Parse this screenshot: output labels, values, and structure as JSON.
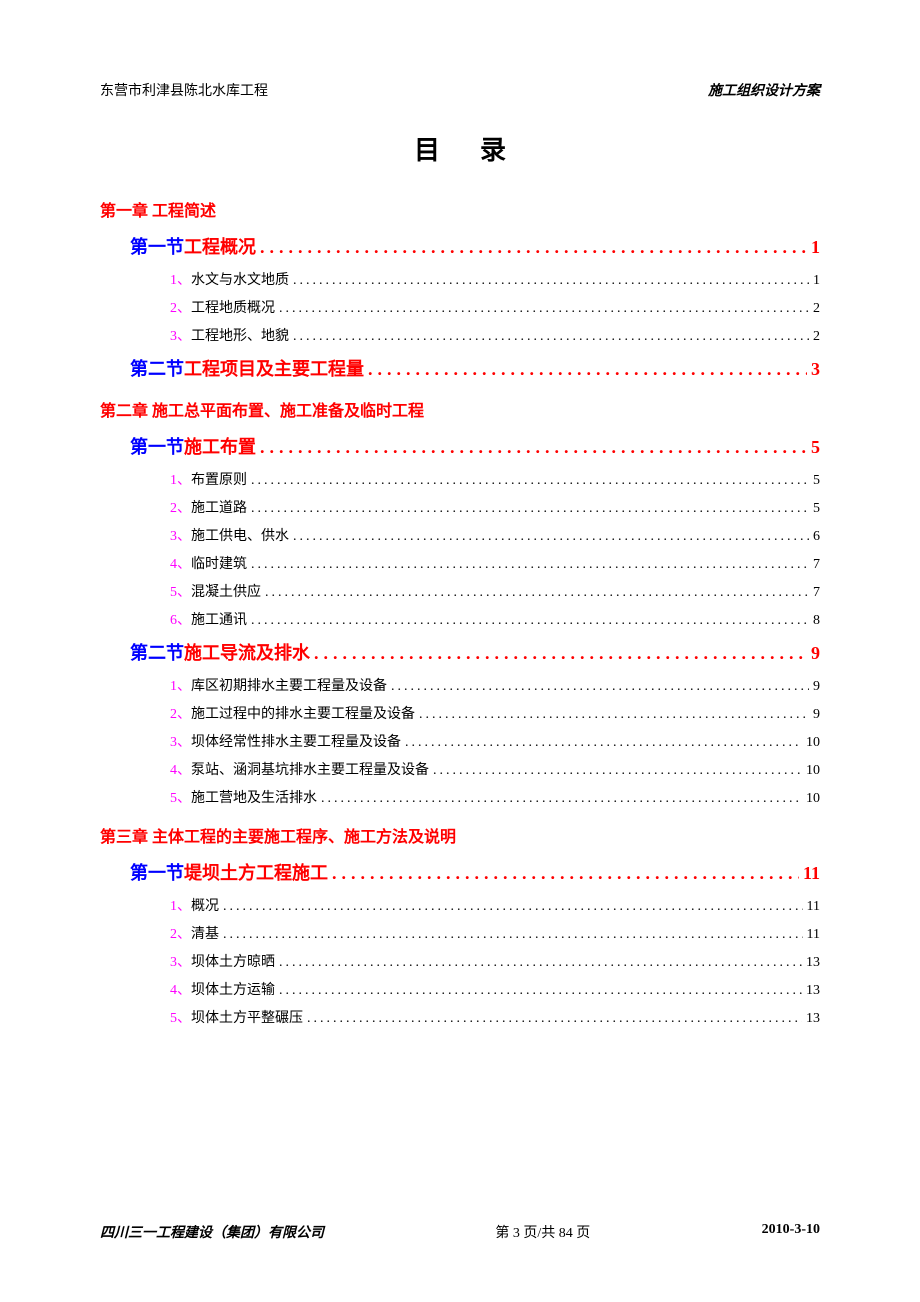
{
  "header": {
    "left": "东营市利津县陈北水库工程",
    "right": "施工组织设计方案"
  },
  "title": "目录",
  "colors": {
    "chapter": "#ff0000",
    "section_label": "#0000ff",
    "section_text": "#ff0000",
    "clause_num": "#ff00ff",
    "clause_text": "#000000"
  },
  "toc": [
    {
      "type": "chapter",
      "text": "第一章 工程简述"
    },
    {
      "type": "section",
      "label": "第一节 ",
      "text": "工程概况",
      "page": "1"
    },
    {
      "type": "clause",
      "num": "1、",
      "text": "水文与水文地质 ",
      "page": "1"
    },
    {
      "type": "clause",
      "num": "2、",
      "text": "工程地质概况 ",
      "page": "2"
    },
    {
      "type": "clause",
      "num": "3、",
      "text": "工程地形、地貌 ",
      "page": "2"
    },
    {
      "type": "section",
      "label": "第二节 ",
      "text": "工程项目及主要工程量",
      "page": "3"
    },
    {
      "type": "chapter",
      "text": "第二章 施工总平面布置、施工准备及临时工程"
    },
    {
      "type": "section",
      "label": "第一节 ",
      "text": "施工布置",
      "page": "5"
    },
    {
      "type": "clause",
      "num": "1、",
      "text": "布置原则 ",
      "page": "5"
    },
    {
      "type": "clause",
      "num": "2、",
      "text": "施工道路 ",
      "page": "5"
    },
    {
      "type": "clause",
      "num": "3、",
      "text": "施工供电、供水 ",
      "page": "6"
    },
    {
      "type": "clause",
      "num": "4、",
      "text": "临时建筑 ",
      "page": "7"
    },
    {
      "type": "clause",
      "num": "5、",
      "text": "混凝土供应 ",
      "page": "7"
    },
    {
      "type": "clause",
      "num": "6、",
      "text": "施工通讯 ",
      "page": "8"
    },
    {
      "type": "section",
      "label": "第二节 ",
      "text": "施工导流及排水",
      "page": "9"
    },
    {
      "type": "clause",
      "num": "1、",
      "text": "库区初期排水主要工程量及设备 ",
      "page": "9"
    },
    {
      "type": "clause",
      "num": "2、",
      "text": "施工过程中的排水主要工程量及设备 ",
      "page": "9"
    },
    {
      "type": "clause",
      "num": "3、",
      "text": "坝体经常性排水主要工程量及设备 ",
      "page": "10"
    },
    {
      "type": "clause",
      "num": "4、",
      "text": "泵站、涵洞基坑排水主要工程量及设备 ",
      "page": "10"
    },
    {
      "type": "clause",
      "num": "5、",
      "text": "施工营地及生活排水 ",
      "page": "10"
    },
    {
      "type": "chapter",
      "text": "第三章 主体工程的主要施工程序、施工方法及说明"
    },
    {
      "type": "section",
      "label": "第一节 ",
      "text": "堤坝土方工程施工",
      "page": "11"
    },
    {
      "type": "clause",
      "num": "1、",
      "text": "概况 ",
      "page": "11"
    },
    {
      "type": "clause",
      "num": "2、",
      "text": "清基 ",
      "page": "11"
    },
    {
      "type": "clause",
      "num": "3、",
      "text": "坝体土方晾晒 ",
      "page": "13"
    },
    {
      "type": "clause",
      "num": "4、",
      "text": "坝体土方运输 ",
      "page": "13"
    },
    {
      "type": "clause",
      "num": "5、",
      "text": "坝体土方平整碾压 ",
      "page": "13"
    }
  ],
  "footer": {
    "left": "四川三一工程建设（集团）有限公司",
    "center": "第 3 页/共 84 页",
    "right": "2010-3-10"
  }
}
